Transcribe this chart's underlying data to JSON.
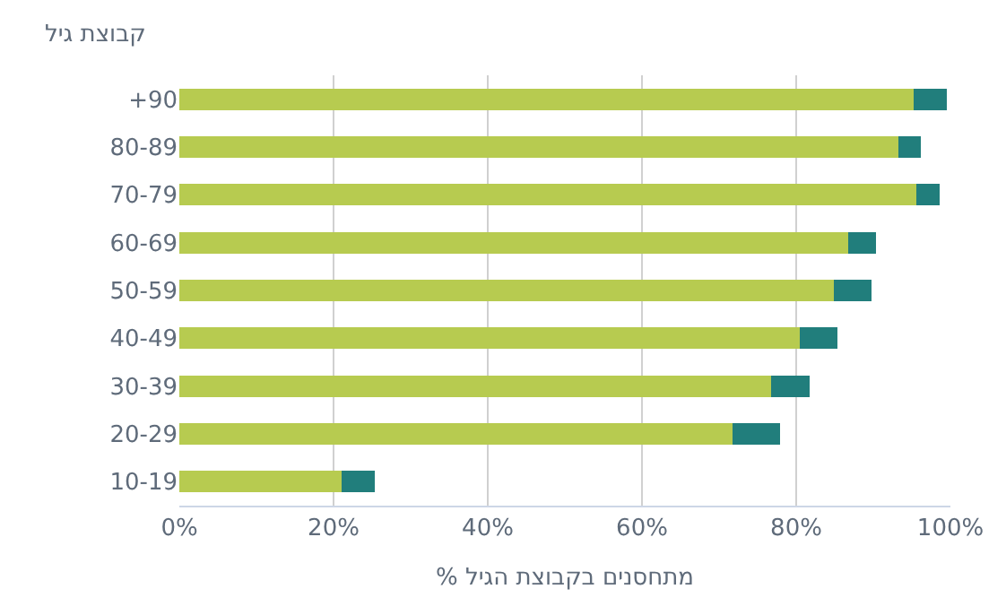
{
  "chart_data": {
    "type": "bar",
    "orientation": "horizontal",
    "stacked": true,
    "ylabel": "קבוצת גיל",
    "xlabel": "% מתחסנים בקבוצת הגיל",
    "categories": [
      "+90",
      "80-89",
      "70-79",
      "60-69",
      "50-59",
      "40-49",
      "30-39",
      "20-29",
      "10-19"
    ],
    "series": [
      {
        "color": "#b7cb50",
        "values": [
          95.2,
          93.3,
          95.6,
          86.8,
          84.9,
          80.5,
          76.7,
          71.8,
          21.0
        ]
      },
      {
        "color": "#217e7c",
        "values": [
          4.3,
          2.9,
          3.0,
          3.6,
          4.9,
          4.8,
          5.1,
          6.1,
          4.4
        ]
      }
    ],
    "xlim": [
      0,
      100
    ],
    "xticks": [
      {
        "value": 0,
        "label": "0%"
      },
      {
        "value": 20,
        "label": "20%"
      },
      {
        "value": 40,
        "label": "40%"
      },
      {
        "value": 60,
        "label": "60%"
      },
      {
        "value": 80,
        "label": "80%"
      },
      {
        "value": 100,
        "label": "100%"
      }
    ],
    "grid": "x",
    "legend": false
  }
}
